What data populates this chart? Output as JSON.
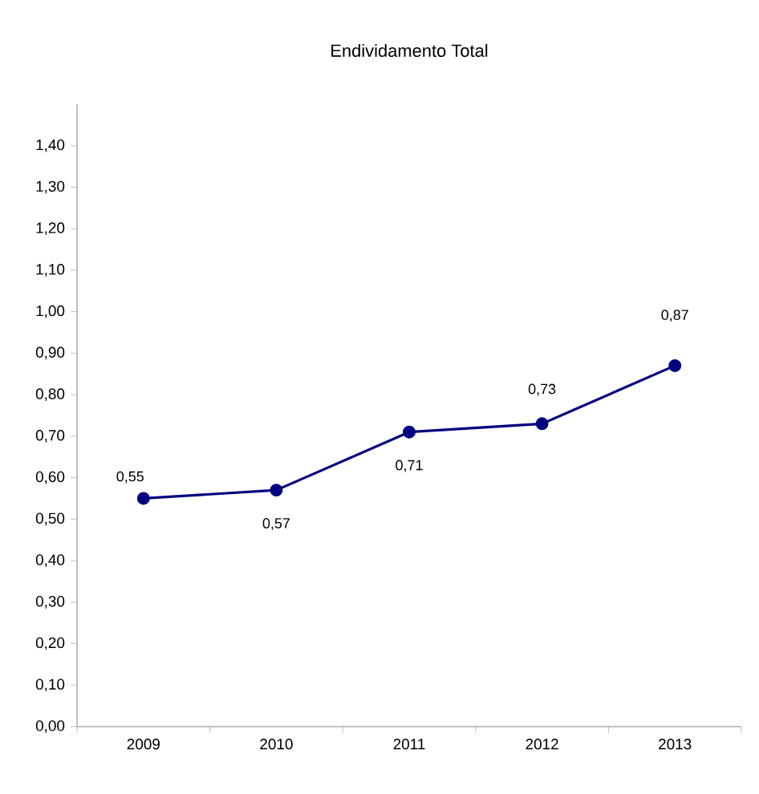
{
  "chart_data": {
    "type": "line",
    "title": "Endividamento Total",
    "categories": [
      "2009",
      "2010",
      "2011",
      "2012",
      "2013"
    ],
    "values": [
      0.55,
      0.57,
      0.71,
      0.73,
      0.87
    ],
    "value_labels": [
      "0,55",
      "0,57",
      "0,71",
      "0,73",
      "0,87"
    ],
    "color": "#000080",
    "marker": "circle",
    "line_style": "solid",
    "grid": false,
    "ylim": [
      0,
      1.5
    ],
    "yticks": [
      {
        "value": 0,
        "label": "0,00"
      },
      {
        "value": 0.1,
        "label": "0,10"
      },
      {
        "value": 0.2,
        "label": "0,20"
      },
      {
        "value": 0.3,
        "label": "0,30"
      },
      {
        "value": 0.4,
        "label": "0,40"
      },
      {
        "value": 0.5,
        "label": "0,50"
      },
      {
        "value": 0.6,
        "label": "0,60"
      },
      {
        "value": 0.7,
        "label": "0,70"
      },
      {
        "value": 0.8,
        "label": "0,80"
      },
      {
        "value": 0.9,
        "label": "0,90"
      },
      {
        "value": 1.0,
        "label": "1,00"
      },
      {
        "value": 1.1,
        "label": "1,10"
      },
      {
        "value": 1.2,
        "label": "1,20"
      },
      {
        "value": 1.3,
        "label": "1,30"
      },
      {
        "value": 1.4,
        "label": "1,40"
      }
    ]
  }
}
